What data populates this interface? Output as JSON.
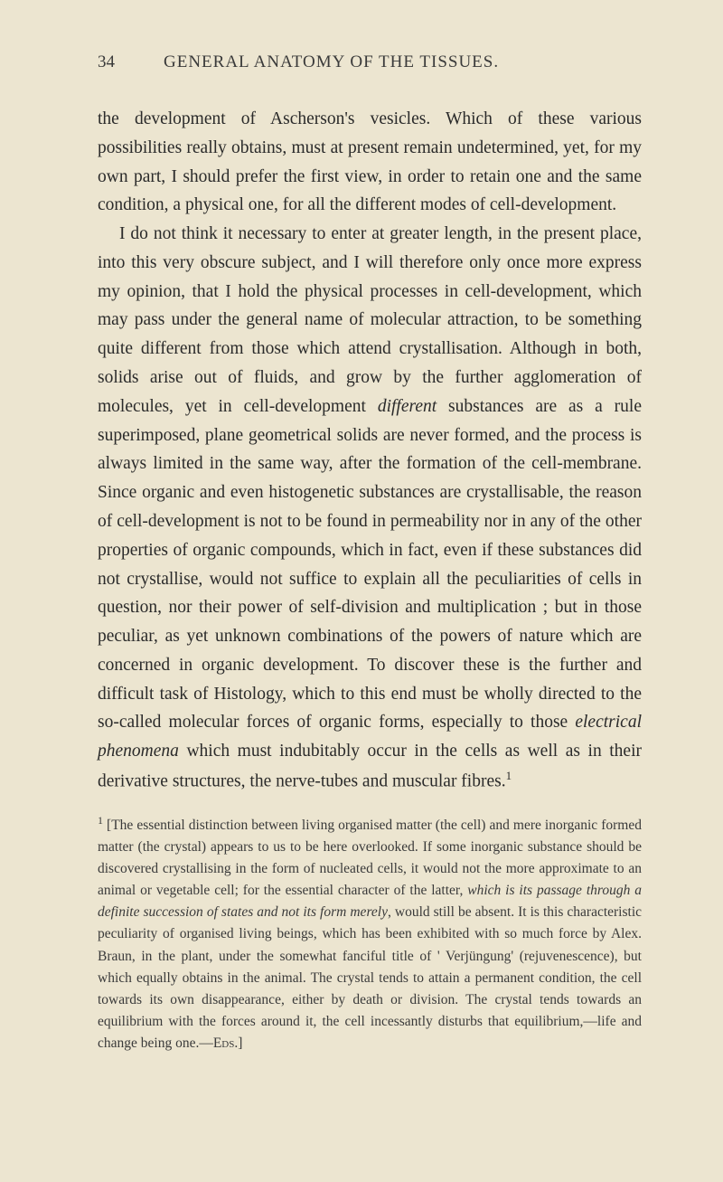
{
  "page_number": "34",
  "header": "GENERAL ANATOMY OF THE TISSUES.",
  "para1_a": "the development of Ascherson's vesicles. Which of these various possibilities really obtains, must at present remain undetermined, yet, for my own part, I should prefer the first view, in order to retain one and the same condition, a physical one, for all the different modes of cell-development.",
  "para2_a": "I do not think it necessary to enter at greater length, in the present place, into this very obscure subject, and I will therefore only once more express my opinion, that I hold the physical processes in cell-development, which may pass under the general name of molecular attraction, to be something quite different from those which attend crystallisation. Although in both, solids arise out of fluids, and grow by the further agglomeration of molecules, yet in cell-development ",
  "para2_b": "different",
  "para2_c": " substances are as a rule superimposed, plane geometrical solids are never formed, and the process is always limited in the same way, after the formation of the cell-membrane. Since organic and even histogenetic substances are crystallisable, the reason of cell-development is not to be found in permeability nor in any of the other properties of organic compounds, which in fact, even if these substances did not crystallise, would not suffice to explain all the peculiarities of cells in question, nor their power of self-division and multiplication ; but in those peculiar, as yet unknown combinations of the powers of nature which are concerned in organic development. To discover these is the further and difficult task of Histology, which to this end must be wholly directed to the so-called molecular forces of organic forms, especially to those ",
  "para2_d": "electrical phenomena",
  "para2_e": " which must indubitably occur in the cells as well as in their derivative structures, the nerve-tubes and muscular fibres.",
  "sup1": "1",
  "fn_marker": "1",
  "fn_a": " [The essential distinction between living organised matter (the cell) and mere inorganic formed matter (the crystal) appears to us to be here overlooked. If some inorganic substance should be discovered crystallising in the form of nucleated cells, it would not the more approximate to an animal or vegetable cell; for the essential character of the latter, ",
  "fn_b": "which is its passage through a definite succession of states and not its form merely",
  "fn_c": ", would still be absent. It is this characteristic peculiarity of organised living beings, which has been exhibited with so much force by Alex. Braun, in the plant, under the somewhat fanciful title of ' Verjüngung' (rejuvenescence), but which equally obtains in the animal. The crystal tends to attain a permanent condition, the cell towards its own disappearance, either by death or division. The crystal tends towards an equilibrium with the forces around it, the cell incessantly disturbs that equilibrium,—life and change being one.—",
  "fn_d": "Eds.",
  "fn_e": "]",
  "colors": {
    "background": "#ece5d0",
    "text": "#2a2a2a",
    "header_text": "#3a3a3a"
  },
  "typography": {
    "body_fontsize": 19.5,
    "header_fontsize": 19,
    "footnote_fontsize": 15.5,
    "line_height": 1.63,
    "font_family": "Georgia, Times New Roman, serif"
  }
}
